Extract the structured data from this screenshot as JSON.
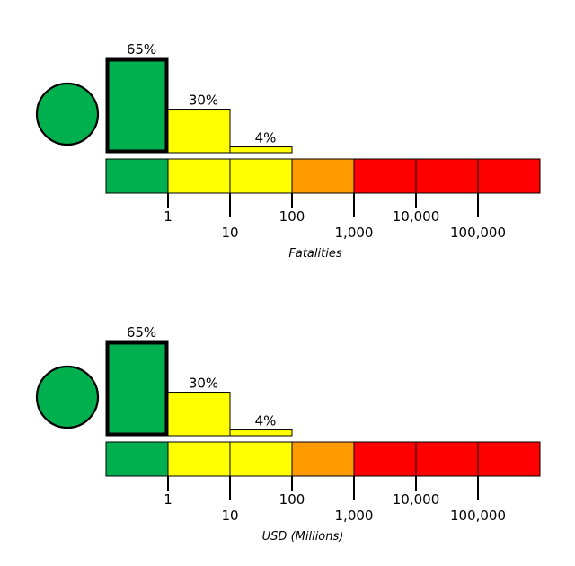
{
  "chart_data": [
    {
      "type": "bar",
      "xlabel": "Fatalities",
      "bins": [
        "0-1",
        "1-10",
        "10-100",
        "100-1,000",
        "1,000-10,000",
        "10,000-100,000",
        "100,000+"
      ],
      "bin_colors": [
        "#00b04f",
        "#ffff00",
        "#ffff00",
        "#ff9900",
        "#ff0000",
        "#ff0000",
        "#ff0000"
      ],
      "probabilities_percent": [
        65,
        30,
        4
      ],
      "bar_labels": [
        "65%",
        "30%",
        "4%"
      ],
      "bar_colors": [
        "#00b04f",
        "#ffff00",
        "#ffff00"
      ],
      "highlighted_bin": 0,
      "tick_labels": [
        "1",
        "10",
        "100",
        "1,000",
        "10,000",
        "100,000"
      ],
      "alert_color": "#00b04f",
      "scale": "log"
    },
    {
      "type": "bar",
      "xlabel": "USD (Millions)",
      "bins": [
        "0-1",
        "1-10",
        "10-100",
        "100-1,000",
        "1,000-10,000",
        "10,000-100,000",
        "100,000+"
      ],
      "bin_colors": [
        "#00b04f",
        "#ffff00",
        "#ffff00",
        "#ff9900",
        "#ff0000",
        "#ff0000",
        "#ff0000"
      ],
      "probabilities_percent": [
        65,
        30,
        4
      ],
      "bar_labels": [
        "65%",
        "30%",
        "4%"
      ],
      "bar_colors": [
        "#00b04f",
        "#ffff00",
        "#ffff00"
      ],
      "highlighted_bin": 0,
      "tick_labels": [
        "1",
        "10",
        "100",
        "1,000",
        "10,000",
        "100,000"
      ],
      "alert_color": "#00b04f",
      "scale": "log"
    }
  ]
}
